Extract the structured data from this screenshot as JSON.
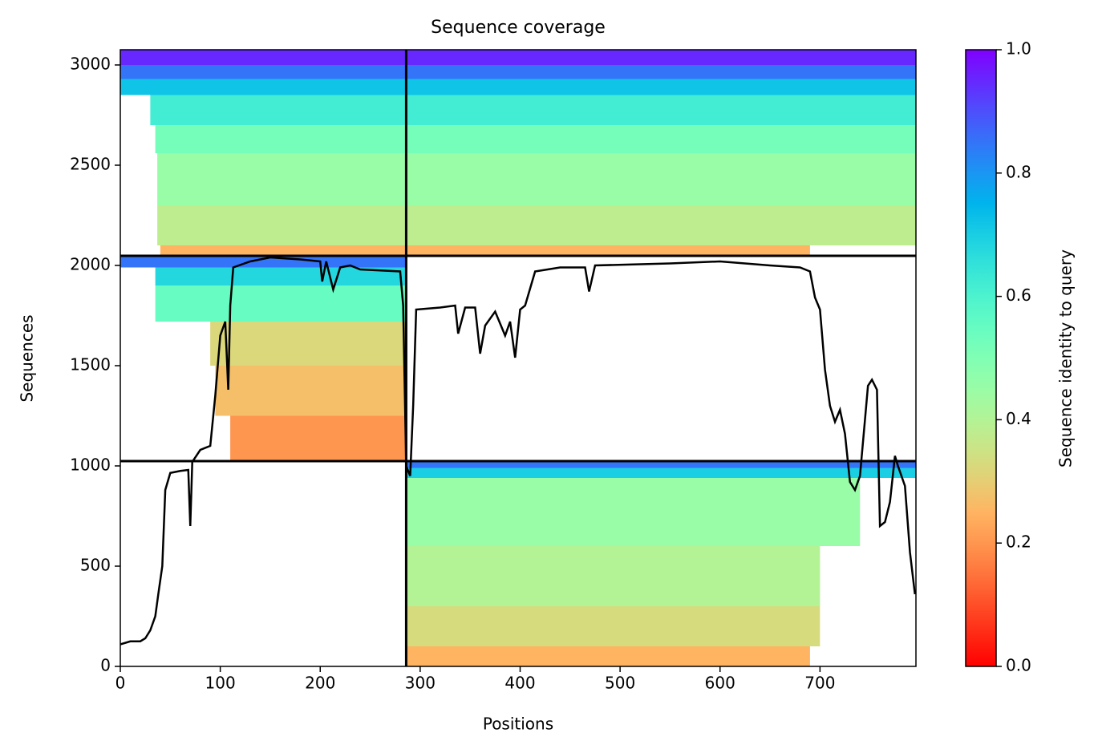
{
  "chart_data": {
    "type": "coverage",
    "title": "Sequence coverage",
    "x_label": "Positions",
    "y_label": "Sequences",
    "xlim": [
      0,
      796
    ],
    "ylim": [
      0,
      3076
    ],
    "xticks": [
      0,
      100,
      200,
      300,
      400,
      500,
      600,
      700
    ],
    "yticks": [
      0,
      500,
      1000,
      1500,
      2000,
      2500,
      3000
    ],
    "boundaries": {
      "x": [
        286
      ],
      "y": [
        1024,
        2048
      ]
    },
    "bands": [
      {
        "y0": 3000,
        "y1": 3076,
        "x0": 0,
        "x1": 796,
        "identity": 0.95
      },
      {
        "y0": 2930,
        "y1": 3000,
        "x0": 0,
        "x1": 796,
        "identity": 0.85
      },
      {
        "y0": 2850,
        "y1": 2930,
        "x0": 0,
        "x1": 796,
        "identity": 0.72
      },
      {
        "y0": 2700,
        "y1": 2850,
        "x0": 30,
        "x1": 796,
        "identity": 0.62
      },
      {
        "y0": 2560,
        "y1": 2700,
        "x0": 35,
        "x1": 796,
        "identity": 0.52
      },
      {
        "y0": 2300,
        "y1": 2560,
        "x0": 37,
        "x1": 796,
        "identity": 0.45
      },
      {
        "y0": 2100,
        "y1": 2300,
        "x0": 37,
        "x1": 796,
        "identity": 0.38
      },
      {
        "y0": 2048,
        "y1": 2100,
        "x0": 40,
        "x1": 690,
        "identity": 0.25
      },
      {
        "y0": 1990,
        "y1": 2048,
        "x0": 0,
        "x1": 286,
        "identity": 0.85
      },
      {
        "y0": 1900,
        "y1": 1990,
        "x0": 35,
        "x1": 286,
        "identity": 0.68
      },
      {
        "y0": 1720,
        "y1": 1900,
        "x0": 35,
        "x1": 286,
        "identity": 0.55
      },
      {
        "y0": 1500,
        "y1": 1720,
        "x0": 90,
        "x1": 286,
        "identity": 0.32
      },
      {
        "y0": 1250,
        "y1": 1500,
        "x0": 95,
        "x1": 286,
        "identity": 0.27
      },
      {
        "y0": 1024,
        "y1": 1250,
        "x0": 110,
        "x1": 286,
        "identity": 0.2
      },
      {
        "y0": 990,
        "y1": 1024,
        "x0": 286,
        "x1": 796,
        "identity": 0.85
      },
      {
        "y0": 940,
        "y1": 990,
        "x0": 286,
        "x1": 796,
        "identity": 0.7
      },
      {
        "y0": 600,
        "y1": 940,
        "x0": 286,
        "x1": 740,
        "identity": 0.45
      },
      {
        "y0": 300,
        "y1": 600,
        "x0": 286,
        "x1": 700,
        "identity": 0.4
      },
      {
        "y0": 100,
        "y1": 300,
        "x0": 286,
        "x1": 700,
        "identity": 0.33
      },
      {
        "y0": 0,
        "y1": 100,
        "x0": 286,
        "x1": 690,
        "identity": 0.25
      }
    ],
    "coverage": {
      "color": "#000000",
      "x": [
        0,
        10,
        20,
        25,
        30,
        35,
        38,
        42,
        45,
        50,
        60,
        68,
        70,
        72,
        80,
        90,
        95,
        100,
        105,
        108,
        110,
        113,
        130,
        150,
        180,
        200,
        202,
        206,
        213,
        220,
        230,
        240,
        280,
        283,
        286,
        290,
        293,
        296,
        320,
        335,
        338,
        345,
        355,
        360,
        365,
        375,
        385,
        390,
        395,
        400,
        405,
        415,
        440,
        465,
        469,
        475,
        550,
        600,
        650,
        680,
        690,
        695,
        700,
        705,
        710,
        715,
        720,
        725,
        730,
        735,
        740,
        745,
        748,
        752,
        757,
        760,
        765,
        770,
        775,
        778,
        785,
        790,
        795
      ],
      "values": [
        110,
        125,
        125,
        140,
        180,
        250,
        360,
        500,
        880,
        965,
        975,
        980,
        700,
        1020,
        1080,
        1100,
        1350,
        1650,
        1720,
        1380,
        1800,
        1990,
        2020,
        2040,
        2030,
        2020,
        1920,
        2020,
        1880,
        1990,
        2000,
        1980,
        1970,
        1800,
        1000,
        950,
        1300,
        1780,
        1790,
        1800,
        1660,
        1790,
        1790,
        1560,
        1700,
        1770,
        1650,
        1720,
        1540,
        1780,
        1800,
        1970,
        1990,
        1990,
        1870,
        2000,
        2010,
        2020,
        2000,
        1990,
        1970,
        1840,
        1780,
        1480,
        1300,
        1220,
        1280,
        1160,
        920,
        880,
        950,
        1230,
        1400,
        1430,
        1380,
        700,
        720,
        820,
        1050,
        1000,
        900,
        570,
        360
      ]
    },
    "colorbar": {
      "label": "Sequence identity to query",
      "lim": [
        0,
        1
      ],
      "ticks": [
        {
          "value": 0,
          "label": "0.0"
        },
        {
          "value": 0.2,
          "label": "0.2"
        },
        {
          "value": 0.4,
          "label": "0.4"
        },
        {
          "value": 0.6,
          "label": "0.6"
        },
        {
          "value": 0.8,
          "label": "0.8"
        },
        {
          "value": 1,
          "label": "1.0"
        }
      ]
    }
  }
}
